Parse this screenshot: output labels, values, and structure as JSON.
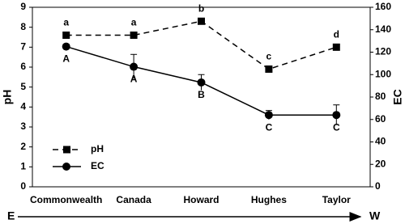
{
  "chart_data": {
    "type": "line",
    "categories": [
      "Commonwealth",
      "Canada",
      "Howard",
      "Hughes",
      "Taylor"
    ],
    "y_label": "pH",
    "y2_label": "EC",
    "ylim": [
      0,
      9
    ],
    "yticks": [
      0,
      1,
      2,
      3,
      4,
      5,
      6,
      7,
      8,
      9
    ],
    "y2lim": [
      0,
      160
    ],
    "y2ticks": [
      0,
      20,
      40,
      60,
      80,
      100,
      120,
      140,
      160
    ],
    "series": [
      {
        "name": "pH",
        "color": "#000000",
        "dashed": true,
        "marker": "square",
        "values": [
          7.6,
          7.6,
          8.3,
          5.9,
          7.0
        ],
        "labels": [
          "a",
          "a",
          "b",
          "c",
          "d"
        ]
      },
      {
        "name": "EC",
        "color": "#000000",
        "dashed": false,
        "marker": "circle",
        "axis": "y2",
        "values": [
          125,
          107,
          93,
          64,
          64
        ],
        "errors": [
          2,
          11,
          7,
          4,
          9
        ],
        "labels": [
          "A",
          "A",
          "B",
          "C",
          "C"
        ]
      }
    ],
    "direction": {
      "start": "E",
      "end": "W"
    }
  }
}
